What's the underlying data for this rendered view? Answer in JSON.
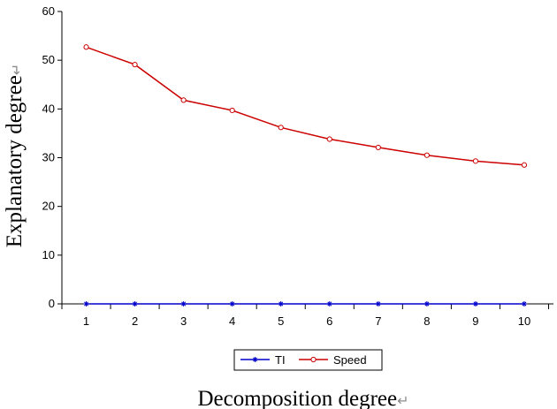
{
  "chart_data": {
    "type": "line",
    "x": [
      1,
      2,
      3,
      4,
      5,
      6,
      7,
      8,
      9,
      10
    ],
    "xticks": [
      "1",
      "2",
      "3",
      "4",
      "5",
      "6",
      "7",
      "8",
      "9",
      "10"
    ],
    "ylim": [
      0,
      60
    ],
    "yticks": [
      "0",
      "10",
      "20",
      "30",
      "40",
      "50",
      "60"
    ],
    "xlabel": "Decomposition degree",
    "ylabel": "Explanatory degree",
    "grid": false,
    "legend_position": "bottom-center",
    "series": [
      {
        "name": "TI",
        "color": "#0000cc",
        "marker": "asterisk",
        "values": [
          0,
          0,
          0,
          0,
          0,
          0,
          0,
          0,
          0,
          0
        ]
      },
      {
        "name": "Speed",
        "color": "#cc0000",
        "marker": "circle",
        "values": [
          52.7,
          49.1,
          41.8,
          39.7,
          36.2,
          33.8,
          32.1,
          30.5,
          29.3,
          28.5
        ]
      }
    ],
    "label_return_mark": "↵"
  }
}
